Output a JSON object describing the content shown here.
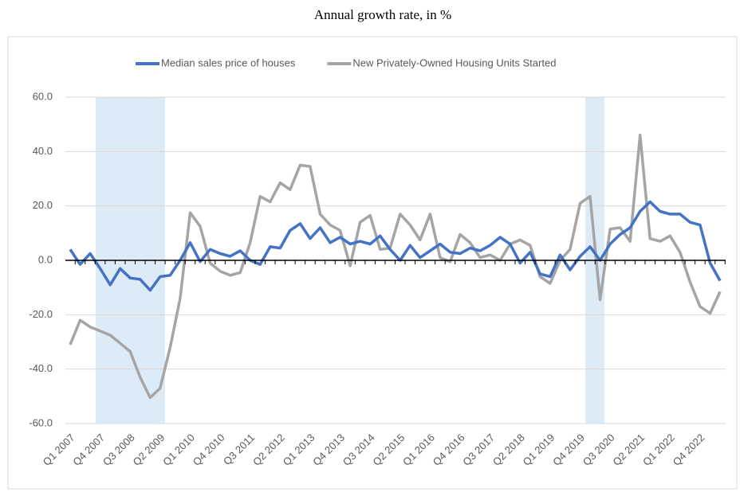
{
  "chart_data": {
    "type": "line",
    "title": "Annual growth rate, in %",
    "categories": [
      "Q1 2007",
      null,
      null,
      "Q4 2007",
      null,
      null,
      "Q3 2008",
      null,
      null,
      "Q2 2009",
      null,
      null,
      "Q1 2010",
      null,
      null,
      "Q4 2010",
      null,
      null,
      "Q3 2011",
      null,
      null,
      "Q2 2012",
      null,
      null,
      "Q1 2013",
      null,
      null,
      "Q4 2013",
      null,
      null,
      "Q3 2014",
      null,
      null,
      "Q2 2015",
      null,
      null,
      "Q1 2016",
      null,
      null,
      "Q4 2016",
      null,
      null,
      "Q3 2017",
      null,
      null,
      "Q2 2018",
      null,
      null,
      "Q1 2019",
      null,
      null,
      "Q4 2019",
      null,
      null,
      "Q3 2020",
      null,
      null,
      "Q2 2021",
      null,
      null,
      "Q1 2022",
      null,
      null,
      "Q4 2022",
      null,
      null
    ],
    "series": [
      {
        "name": "Median sales price of houses",
        "color": "#4472c4",
        "values": [
          4,
          -1.5,
          2.5,
          -3,
          -9,
          -3,
          -6.5,
          -7,
          -11,
          -6,
          -5.5,
          0,
          6.5,
          -0.5,
          4,
          2.5,
          1.5,
          3.5,
          0,
          -1.5,
          5,
          4.5,
          11,
          13.5,
          8,
          12,
          6.5,
          8.5,
          6,
          7,
          6,
          9,
          4,
          0,
          5.5,
          1,
          3.5,
          6,
          3,
          2.5,
          4.5,
          3.5,
          5.5,
          8.5,
          6,
          -1,
          3,
          -5,
          -6,
          2,
          -3.5,
          1.5,
          5,
          0,
          6,
          9.5,
          12,
          18,
          21.5,
          18,
          17,
          17,
          14,
          13,
          -1,
          -7.5
        ]
      },
      {
        "name": "New Privately-Owned Housing Units Started",
        "color": "#a5a5a5",
        "values": [
          -31,
          -22,
          -24.5,
          -26,
          -27.5,
          -30.5,
          -33.5,
          -43,
          -50.5,
          -47,
          -32,
          -14,
          17.5,
          12.5,
          -1,
          -4,
          -5.5,
          -4.5,
          6.5,
          23.5,
          21.5,
          28.5,
          26,
          35,
          34.5,
          17,
          13,
          11,
          -2,
          14,
          16.5,
          4,
          4.5,
          17,
          13,
          7.5,
          17,
          1,
          -0.5,
          9.5,
          6.5,
          1,
          2,
          0,
          6,
          7.5,
          5.5,
          -6,
          -8.5,
          0,
          4,
          21,
          23.5,
          -14.5,
          11.5,
          12,
          7,
          46,
          8,
          7,
          9,
          3,
          -8,
          -17,
          -19.5,
          -11.5
        ]
      }
    ],
    "ylim": [
      -60,
      60
    ],
    "yticks": [
      {
        "value": -60,
        "label": "-60.0"
      },
      {
        "value": -40,
        "label": "-40.0"
      },
      {
        "value": -20,
        "label": "-20.0"
      },
      {
        "value": 0,
        "label": "0.0"
      },
      {
        "value": 20,
        "label": "20.0"
      },
      {
        "value": 40,
        "label": "40.0"
      },
      {
        "value": 60,
        "label": "60.0"
      }
    ],
    "grid": true,
    "legend": "top"
  }
}
